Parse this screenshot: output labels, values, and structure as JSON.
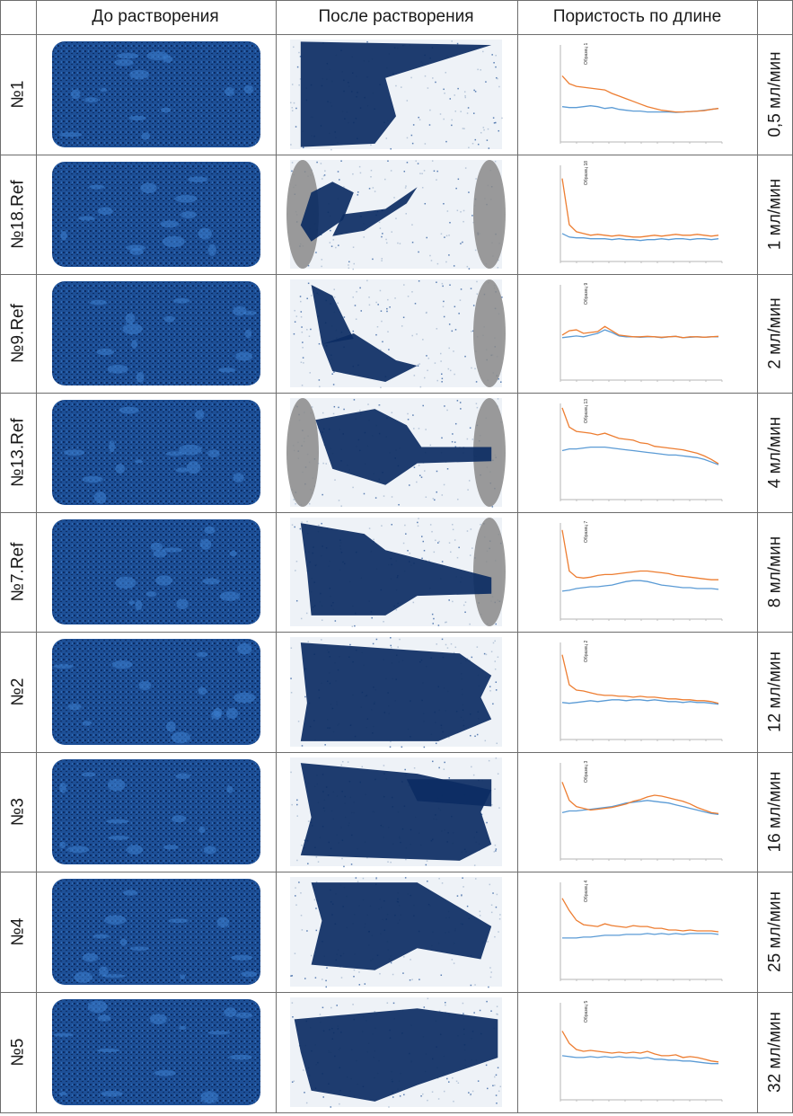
{
  "headers": [
    "До растворения",
    "После растворения",
    "Пористость по длине"
  ],
  "colors": {
    "rock_blue": "#1d4f96",
    "rock_dark": "#0c2c63",
    "rock_light": "#3c80d0",
    "disk_gray": "#8a8a8a",
    "series_orange": "#ed7d31",
    "series_blue": "#5b9bd5",
    "grid_line": "#6d6d6d"
  },
  "rows": [
    {
      "sample": "№1",
      "rate": "0,5 мл/мин",
      "chart_label": "Образец 1",
      "orange": [
        7.5,
        6.6,
        6.3,
        6.2,
        6.1,
        6.0,
        5.9,
        5.5,
        5.2,
        4.9,
        4.6,
        4.3,
        4.0,
        3.8,
        3.6,
        3.5,
        3.4,
        3.4,
        3.45,
        3.5,
        3.55,
        3.7,
        3.8
      ],
      "blue": [
        4.0,
        3.9,
        3.9,
        4.0,
        4.1,
        4.0,
        3.8,
        3.9,
        3.7,
        3.6,
        3.5,
        3.5,
        3.4,
        3.4,
        3.4,
        3.4,
        3.35,
        3.4,
        3.45,
        3.5,
        3.6,
        3.7,
        3.8
      ]
    },
    {
      "sample": "№18.Ref",
      "rate": "1 мл/мин",
      "chart_label": "Образец 18",
      "orange": [
        9.5,
        4.2,
        3.4,
        3.2,
        3.0,
        3.1,
        3.0,
        2.9,
        3.0,
        2.9,
        2.8,
        2.8,
        2.9,
        3.0,
        2.9,
        3.0,
        3.1,
        3.0,
        3.0,
        3.1,
        3.0,
        2.9,
        3.0
      ],
      "blue": [
        3.2,
        2.8,
        2.7,
        2.7,
        2.6,
        2.6,
        2.6,
        2.5,
        2.6,
        2.5,
        2.5,
        2.4,
        2.5,
        2.5,
        2.6,
        2.5,
        2.6,
        2.6,
        2.5,
        2.6,
        2.6,
        2.5,
        2.6
      ]
    },
    {
      "sample": "№9.Ref",
      "rate": "2 мл/мин",
      "chart_label": "Образец 9",
      "orange": [
        5.2,
        5.7,
        5.8,
        5.4,
        5.5,
        5.6,
        6.2,
        5.7,
        5.2,
        5.1,
        5.0,
        5.0,
        5.05,
        5.0,
        4.95,
        5.0,
        5.05,
        4.9,
        5.0,
        5.0,
        4.95,
        5.0,
        5.05
      ],
      "blue": [
        4.9,
        5.0,
        5.1,
        5.0,
        5.2,
        5.4,
        5.8,
        5.5,
        5.1,
        5.0,
        5.0,
        4.95,
        5.0,
        5.0,
        4.9,
        5.0,
        5.05,
        4.9,
        4.95,
        5.0,
        4.95,
        5.0,
        5.0
      ]
    },
    {
      "sample": "№13.Ref",
      "rate": "4 мл/мин",
      "chart_label": "Образец 13",
      "orange": [
        10.5,
        8.3,
        7.8,
        7.7,
        7.6,
        7.4,
        7.6,
        7.3,
        7.0,
        6.9,
        6.8,
        6.5,
        6.4,
        6.1,
        6.0,
        5.9,
        5.8,
        5.7,
        5.5,
        5.3,
        5.0,
        4.6,
        4.1
      ],
      "blue": [
        5.6,
        5.8,
        5.8,
        5.9,
        6.0,
        6.0,
        6.0,
        5.9,
        5.8,
        5.7,
        5.6,
        5.5,
        5.4,
        5.3,
        5.2,
        5.1,
        5.1,
        5.0,
        4.9,
        4.8,
        4.6,
        4.3,
        4.0
      ]
    },
    {
      "sample": "№7.Ref",
      "rate": "8 мл/мин",
      "chart_label": "Образец 7",
      "orange": [
        10.2,
        5.5,
        4.8,
        4.7,
        4.8,
        5.0,
        5.1,
        5.1,
        5.2,
        5.3,
        5.4,
        5.5,
        5.5,
        5.4,
        5.3,
        5.2,
        5.0,
        4.9,
        4.8,
        4.7,
        4.6,
        4.5,
        4.5
      ],
      "blue": [
        3.2,
        3.3,
        3.5,
        3.6,
        3.7,
        3.7,
        3.8,
        3.9,
        4.1,
        4.3,
        4.4,
        4.4,
        4.3,
        4.1,
        3.9,
        3.8,
        3.7,
        3.6,
        3.6,
        3.5,
        3.5,
        3.5,
        3.4
      ]
    },
    {
      "sample": "№2",
      "rate": "12 мл/мин",
      "chart_label": "Образец 2",
      "orange": [
        9.6,
        6.2,
        5.6,
        5.5,
        5.3,
        5.1,
        5.0,
        5.0,
        4.9,
        4.9,
        4.8,
        4.9,
        4.8,
        4.8,
        4.7,
        4.6,
        4.6,
        4.5,
        4.5,
        4.4,
        4.4,
        4.3,
        4.1
      ],
      "blue": [
        4.2,
        4.1,
        4.2,
        4.3,
        4.4,
        4.3,
        4.4,
        4.5,
        4.5,
        4.4,
        4.5,
        4.5,
        4.4,
        4.5,
        4.4,
        4.3,
        4.3,
        4.2,
        4.3,
        4.2,
        4.2,
        4.1,
        4.0
      ]
    },
    {
      "sample": "№3",
      "rate": "16 мл/мин",
      "chart_label": "Образец 3",
      "orange": [
        8.8,
        6.7,
        6.0,
        5.8,
        5.6,
        5.7,
        5.8,
        5.9,
        6.1,
        6.3,
        6.6,
        6.8,
        7.1,
        7.3,
        7.2,
        7.0,
        6.8,
        6.6,
        6.3,
        5.9,
        5.6,
        5.3,
        5.2
      ],
      "blue": [
        5.3,
        5.5,
        5.5,
        5.6,
        5.7,
        5.8,
        5.9,
        6.0,
        6.2,
        6.4,
        6.5,
        6.6,
        6.7,
        6.6,
        6.5,
        6.4,
        6.2,
        6.0,
        5.8,
        5.6,
        5.4,
        5.2,
        5.1
      ]
    },
    {
      "sample": "№4",
      "rate": "25 мл/мин",
      "chart_label": "Образец 4",
      "orange": [
        9.2,
        7.8,
        6.7,
        6.2,
        6.1,
        6.0,
        6.3,
        6.1,
        6.0,
        5.9,
        6.1,
        6.0,
        6.0,
        5.8,
        5.8,
        5.6,
        5.6,
        5.5,
        5.6,
        5.5,
        5.5,
        5.5,
        5.4
      ],
      "blue": [
        4.7,
        4.7,
        4.7,
        4.8,
        4.8,
        4.9,
        5.0,
        5.0,
        5.0,
        5.1,
        5.1,
        5.1,
        5.2,
        5.1,
        5.2,
        5.1,
        5.2,
        5.1,
        5.2,
        5.2,
        5.2,
        5.2,
        5.1
      ]
    },
    {
      "sample": "№5",
      "rate": "32 мл/мин",
      "chart_label": "Образец 5",
      "orange": [
        7.8,
        6.4,
        5.7,
        5.5,
        5.6,
        5.5,
        5.4,
        5.3,
        5.4,
        5.3,
        5.4,
        5.3,
        5.5,
        5.2,
        5.0,
        5.0,
        5.1,
        4.8,
        4.9,
        4.8,
        4.6,
        4.4,
        4.3
      ],
      "blue": [
        5.0,
        4.9,
        4.8,
        4.8,
        4.9,
        4.8,
        4.9,
        4.8,
        4.9,
        4.8,
        4.8,
        4.7,
        4.8,
        4.6,
        4.6,
        4.5,
        4.5,
        4.4,
        4.4,
        4.3,
        4.2,
        4.1,
        4.1
      ]
    }
  ],
  "chart_data": {
    "type": "line",
    "title": "Пористость по длине",
    "note": "9 small line charts (one per sample row); two series each (orange and blue), y values are relative chart-height levels estimated from the image; tiny axis lettering is illegible",
    "x": [
      0,
      1,
      2,
      3,
      4,
      5,
      6,
      7,
      8,
      9,
      10,
      11,
      12,
      13,
      14,
      15,
      16,
      17,
      18,
      19,
      20,
      21,
      22
    ],
    "ylim": [
      0,
      11
    ]
  }
}
